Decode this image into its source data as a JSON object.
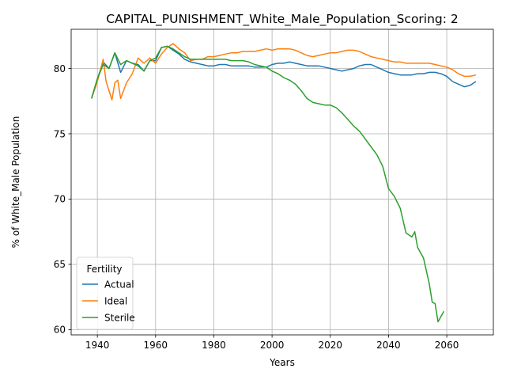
{
  "chart_data": {
    "type": "line",
    "title": "CAPITAL_PUNISHMENT_White_Male_Population_Scoring: 2",
    "xlabel": "Years",
    "ylabel": "% of White_Male Population",
    "xlim": [
      1931,
      2076
    ],
    "ylim": [
      59.6,
      83.0
    ],
    "xticks": [
      1940,
      1960,
      1980,
      2000,
      2020,
      2040,
      2060
    ],
    "yticks": [
      60,
      65,
      70,
      75,
      80
    ],
    "grid": true,
    "legend": {
      "title": "Fertility",
      "position": "lower-left"
    },
    "colors": {
      "Actual": "#1f77b4",
      "Ideal": "#ff7f0e",
      "Sterile": "#2ca02c"
    },
    "series": [
      {
        "name": "Actual",
        "x": [
          1938,
          1940,
          1942,
          1944,
          1946,
          1948,
          1950,
          1952,
          1954,
          1956,
          1958,
          1960,
          1962,
          1964,
          1966,
          1968,
          1970,
          1972,
          1974,
          1976,
          1978,
          1980,
          1982,
          1984,
          1986,
          1988,
          1990,
          1992,
          1994,
          1996,
          1998,
          2000,
          2002,
          2004,
          2006,
          2008,
          2010,
          2012,
          2014,
          2016,
          2018,
          2020,
          2022,
          2024,
          2026,
          2028,
          2030,
          2032,
          2034,
          2036,
          2038,
          2040,
          2042,
          2044,
          2046,
          2048,
          2050,
          2052,
          2054,
          2056,
          2058,
          2060,
          2062,
          2064,
          2066,
          2068,
          2070
        ],
        "y": [
          77.7,
          79.2,
          80.5,
          80.0,
          81.2,
          79.7,
          80.6,
          80.4,
          80.3,
          79.8,
          80.6,
          80.6,
          81.6,
          81.7,
          81.4,
          81.1,
          80.7,
          80.5,
          80.4,
          80.3,
          80.2,
          80.2,
          80.3,
          80.3,
          80.2,
          80.2,
          80.2,
          80.2,
          80.1,
          80.1,
          80.1,
          80.3,
          80.4,
          80.4,
          80.5,
          80.4,
          80.3,
          80.2,
          80.2,
          80.2,
          80.1,
          80.0,
          79.9,
          79.8,
          79.9,
          80.0,
          80.2,
          80.3,
          80.3,
          80.1,
          79.9,
          79.7,
          79.6,
          79.5,
          79.5,
          79.5,
          79.6,
          79.6,
          79.7,
          79.7,
          79.6,
          79.4,
          79.0,
          78.8,
          78.6,
          78.7,
          79.0
        ]
      },
      {
        "name": "Ideal",
        "x": [
          1938,
          1940,
          1942,
          1943,
          1944,
          1945,
          1946,
          1947,
          1948,
          1950,
          1952,
          1954,
          1956,
          1958,
          1960,
          1962,
          1964,
          1966,
          1968,
          1970,
          1972,
          1974,
          1976,
          1978,
          1980,
          1982,
          1984,
          1986,
          1988,
          1990,
          1992,
          1994,
          1996,
          1998,
          2000,
          2002,
          2004,
          2006,
          2008,
          2010,
          2012,
          2014,
          2016,
          2018,
          2020,
          2022,
          2024,
          2026,
          2028,
          2030,
          2032,
          2034,
          2036,
          2038,
          2040,
          2042,
          2044,
          2046,
          2048,
          2050,
          2052,
          2054,
          2056,
          2058,
          2060,
          2062,
          2064,
          2066,
          2068,
          2070
        ],
        "y": [
          77.7,
          79.0,
          80.7,
          79.0,
          78.3,
          77.6,
          78.9,
          79.1,
          77.7,
          78.9,
          79.6,
          80.8,
          80.4,
          80.8,
          80.4,
          81.1,
          81.6,
          81.9,
          81.5,
          81.2,
          80.6,
          80.7,
          80.7,
          80.9,
          80.9,
          81.0,
          81.1,
          81.2,
          81.2,
          81.3,
          81.3,
          81.3,
          81.4,
          81.5,
          81.4,
          81.5,
          81.5,
          81.5,
          81.4,
          81.2,
          81.0,
          80.9,
          81.0,
          81.1,
          81.2,
          81.2,
          81.3,
          81.4,
          81.4,
          81.3,
          81.1,
          80.9,
          80.8,
          80.7,
          80.6,
          80.5,
          80.5,
          80.4,
          80.4,
          80.4,
          80.4,
          80.4,
          80.3,
          80.2,
          80.1,
          79.9,
          79.6,
          79.4,
          79.4,
          79.5
        ]
      },
      {
        "name": "Sterile",
        "x": [
          1938,
          1940,
          1942,
          1944,
          1946,
          1948,
          1950,
          1952,
          1954,
          1956,
          1958,
          1960,
          1962,
          1964,
          1966,
          1968,
          1970,
          1972,
          1974,
          1976,
          1978,
          1980,
          1982,
          1984,
          1986,
          1988,
          1990,
          1992,
          1994,
          1996,
          1998,
          2000,
          2002,
          2004,
          2006,
          2008,
          2010,
          2012,
          2014,
          2016,
          2018,
          2020,
          2022,
          2024,
          2026,
          2028,
          2030,
          2032,
          2034,
          2036,
          2038,
          2040,
          2042,
          2044,
          2046,
          2048,
          2049,
          2050,
          2052,
          2054,
          2055,
          2056,
          2057,
          2058,
          2059
        ],
        "y": [
          77.7,
          79.2,
          80.3,
          80.0,
          81.2,
          80.3,
          80.6,
          80.4,
          80.2,
          79.8,
          80.6,
          80.8,
          81.6,
          81.7,
          81.5,
          81.2,
          80.9,
          80.7,
          80.7,
          80.7,
          80.7,
          80.7,
          80.7,
          80.7,
          80.6,
          80.6,
          80.6,
          80.5,
          80.3,
          80.2,
          80.1,
          79.8,
          79.6,
          79.3,
          79.1,
          78.8,
          78.3,
          77.7,
          77.4,
          77.3,
          77.2,
          77.2,
          77.0,
          76.6,
          76.1,
          75.6,
          75.2,
          74.6,
          74.0,
          73.4,
          72.5,
          70.8,
          70.2,
          69.3,
          67.4,
          67.1,
          67.5,
          66.3,
          65.5,
          63.5,
          62.1,
          62.0,
          60.6,
          61.0,
          61.4
        ]
      }
    ]
  }
}
